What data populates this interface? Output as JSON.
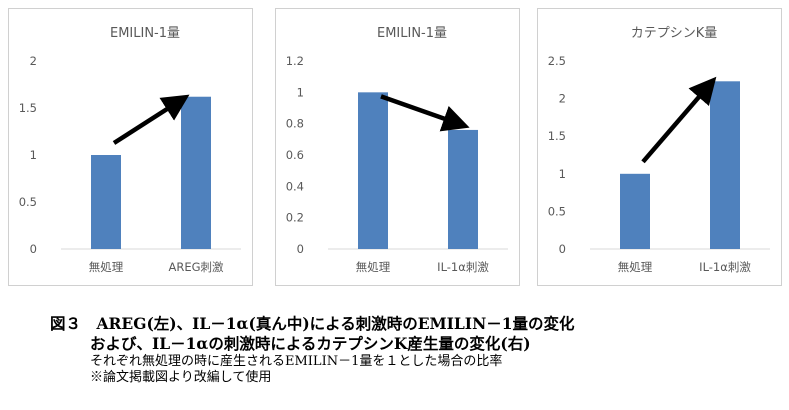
{
  "chart_data": [
    {
      "type": "bar",
      "title": "EMILIN-1量",
      "categories": [
        "無処理",
        "AREG刺激"
      ],
      "values": [
        1.0,
        1.62
      ],
      "ylim": [
        0,
        2
      ],
      "yticks": [
        "0",
        "0.5",
        "1",
        "1.5",
        "2"
      ],
      "ytick_values": [
        0,
        0.5,
        1,
        1.5,
        2
      ],
      "grid": false,
      "arrow_direction": "up",
      "bar_color": "#4f81bd"
    },
    {
      "type": "bar",
      "title": "EMILIN-1量",
      "categories": [
        "無処理",
        "IL-1α刺激"
      ],
      "values": [
        1.0,
        0.76
      ],
      "ylim": [
        0,
        1.2
      ],
      "yticks": [
        "0",
        "0.2",
        "0.4",
        "0.6",
        "0.8",
        "1",
        "1.2"
      ],
      "ytick_values": [
        0,
        0.2,
        0.4,
        0.6,
        0.8,
        1,
        1.2
      ],
      "grid": false,
      "arrow_direction": "down",
      "bar_color": "#4f81bd"
    },
    {
      "type": "bar",
      "title": "カテプシンK量",
      "categories": [
        "無処理",
        "IL-1α刺激"
      ],
      "values": [
        1.0,
        2.23
      ],
      "ylim": [
        0,
        2.5
      ],
      "yticks": [
        "0",
        "0.5",
        "1",
        "1.5",
        "2",
        "2.5"
      ],
      "ytick_values": [
        0,
        0.5,
        1,
        1.5,
        2,
        2.5
      ],
      "grid": false,
      "arrow_direction": "up",
      "bar_color": "#4f81bd"
    }
  ],
  "caption": {
    "line1": "図３　AREG(左)、IL－1α(真ん中)による刺激時のEMILIN－1量の変化",
    "line2": "および、IL－1αの刺激時によるカテプシンK産生量の変化(右)",
    "line3": "それぞれ無処理の時に産生されるEMILIN－1量を１とした場合の比率",
    "line4": "※論文掲載図より改編して使用"
  }
}
